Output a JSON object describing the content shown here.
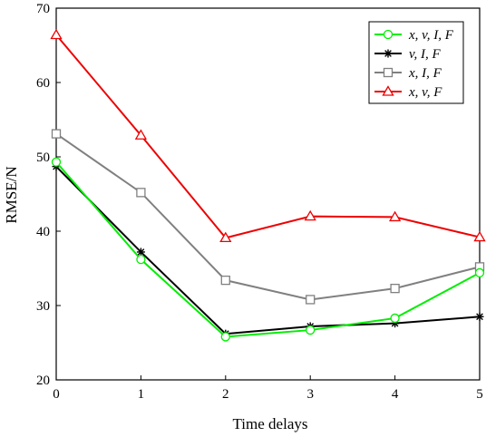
{
  "chart_data": {
    "type": "line",
    "title": "",
    "xlabel": "Time delays",
    "ylabel": "RMSE/N",
    "x": [
      0,
      1,
      2,
      3,
      4,
      5
    ],
    "xticks": [
      "0",
      "1",
      "2",
      "3",
      "4",
      "5"
    ],
    "yticks": [
      "20",
      "30",
      "40",
      "50",
      "60",
      "70"
    ],
    "xlim": [
      0,
      5
    ],
    "ylim": [
      20,
      70
    ],
    "grid": false,
    "legend_position": "top-right",
    "series": [
      {
        "name": "x, v, I, F",
        "color": "#00ee00",
        "marker": "circle",
        "values": [
          49.3,
          36.2,
          25.8,
          26.7,
          28.3,
          34.4
        ]
      },
      {
        "name": "v, I, F",
        "color": "#000000",
        "marker": "asterisk",
        "values": [
          48.7,
          37.2,
          26.2,
          27.2,
          27.6,
          28.5
        ]
      },
      {
        "name": "x, I, F",
        "color": "#808080",
        "marker": "square",
        "values": [
          53.1,
          45.2,
          33.4,
          30.8,
          32.3,
          35.2
        ]
      },
      {
        "name": "x, v, F",
        "color": "#ee0000",
        "marker": "triangle",
        "values": [
          66.4,
          52.9,
          39.1,
          42.0,
          41.9,
          39.2
        ]
      }
    ]
  }
}
